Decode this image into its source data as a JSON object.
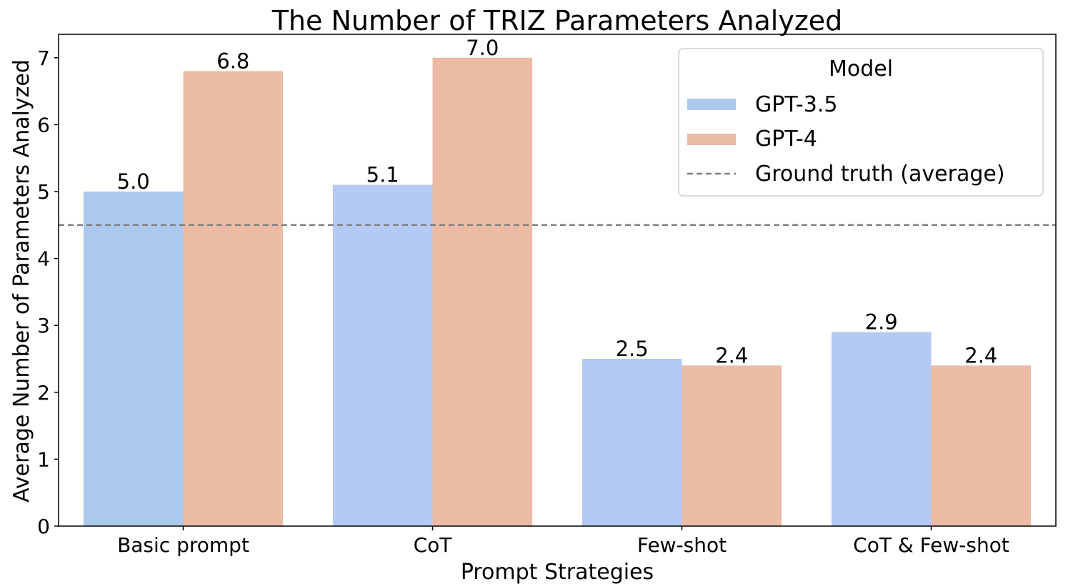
{
  "chart_data": {
    "type": "bar",
    "title": "The Number of TRIZ Parameters Analyzed",
    "xlabel": "Prompt Strategies",
    "ylabel": "Average Number of Parameters Analyzed",
    "categories": [
      "Basic prompt",
      "CoT",
      "Few-shot",
      "CoT & Few-shot"
    ],
    "series": [
      {
        "name": "GPT-3.5",
        "values": [
          5.0,
          5.1,
          2.5,
          2.9
        ],
        "labels": [
          "5.0",
          "5.1",
          "2.5",
          "2.9"
        ],
        "colors": [
          "#abc9ed",
          "#b4c9f3",
          "#b4c9f3",
          "#b4c9f3"
        ],
        "legend_color": "#abc9ed"
      },
      {
        "name": "GPT-4",
        "values": [
          6.8,
          7.0,
          2.4,
          2.4
        ],
        "labels": [
          "6.8",
          "7.0",
          "2.4",
          "2.4"
        ],
        "colors": [
          "#ecbba6",
          "#ecbba6",
          "#ecbba6",
          "#ecbba6"
        ],
        "legend_color": "#ecbba6"
      }
    ],
    "reference_line": {
      "name": "Ground truth (average)",
      "value": 4.5,
      "color": "#808080",
      "style": "dashed"
    },
    "ylim": [
      0,
      7.35
    ],
    "yticks": [
      "0",
      "1",
      "2",
      "3",
      "4",
      "5",
      "6",
      "7"
    ],
    "grid": false,
    "legend": {
      "title": "Model",
      "placement": "top-right"
    }
  }
}
